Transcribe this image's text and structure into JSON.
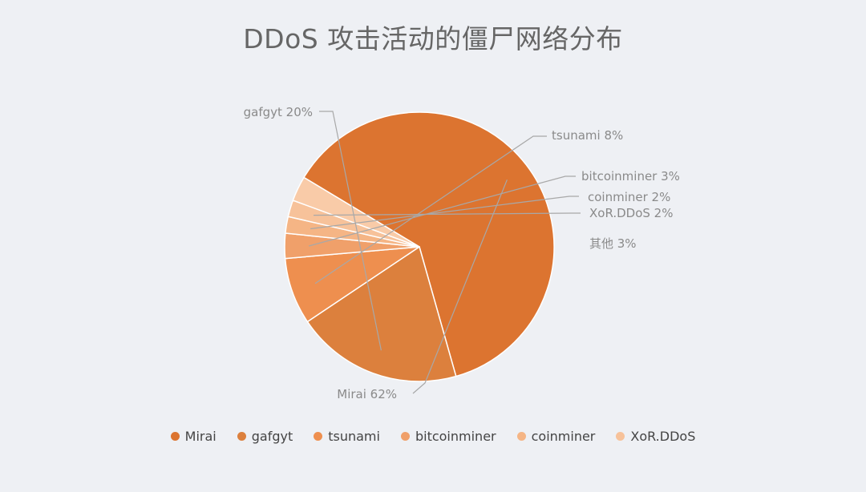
{
  "chart_data": {
    "type": "pie",
    "title": "DDoS 攻击活动的僵尸网络分布",
    "slices": [
      {
        "name": "Mirai",
        "value": 62,
        "label": "Mirai 62%",
        "color": "#dc7430"
      },
      {
        "name": "gafgyt",
        "value": 20,
        "label": "gafgyt 20%",
        "color": "#dc803d"
      },
      {
        "name": "tsunami",
        "value": 8,
        "label": "tsunami 8%",
        "color": "#ee8f4f"
      },
      {
        "name": "bitcoinminer",
        "value": 3,
        "label": "bitcoinminer 3%",
        "color": "#f0a06a"
      },
      {
        "name": "coinminer",
        "value": 2,
        "label": "coinminer 2%",
        "color": "#f5b585"
      },
      {
        "name": "XoR.DDoS",
        "value": 2,
        "label": "XoR.DDoS 2%",
        "color": "#f7c29a"
      },
      {
        "name": "其他",
        "value": 3,
        "label": "其他 3%",
        "color": "#f9cba8"
      }
    ],
    "legend": {
      "placement": "bottom",
      "entries": [
        {
          "name": "Mirai",
          "color": "#dc7430"
        },
        {
          "name": "gafgyt",
          "color": "#dc803d"
        },
        {
          "name": "tsunami",
          "color": "#ee8f4f"
        },
        {
          "name": "bitcoinminer",
          "color": "#f0a06a"
        },
        {
          "name": "coinminer",
          "color": "#f5b585"
        },
        {
          "name": "XoR.DDoS",
          "color": "#f7c29a"
        }
      ]
    }
  }
}
